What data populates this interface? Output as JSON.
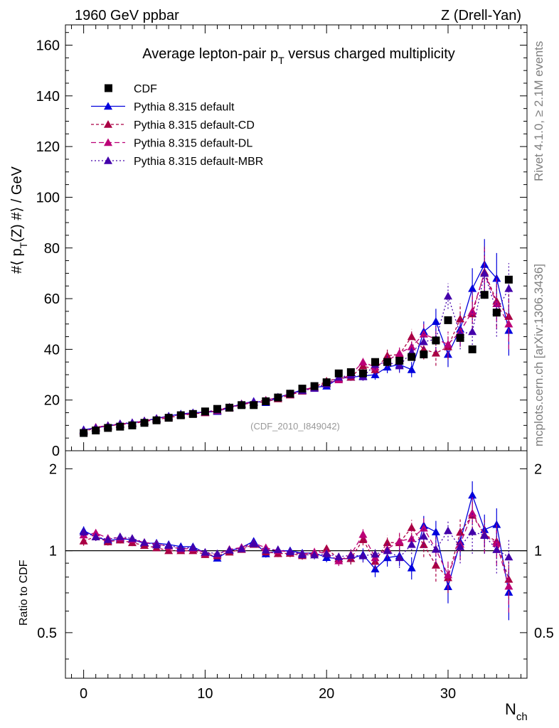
{
  "header": {
    "left": "1960 GeV ppbar",
    "right": "Z (Drell-Yan)"
  },
  "side": {
    "top": "Rivet 4.1.0, ≥ 2.1M events",
    "bottom": "mcplots.cern.ch [arXiv:1306.3436]"
  },
  "chart_data": {
    "type": "scatter",
    "title": "Average lepton-pair p_T versus charged multiplicity",
    "watermark": "(CDF_2010_I849042)",
    "xlabel": "N_ch",
    "ylabel": "#⟨ p_T(Z) #⟩ / GeV",
    "ratio_ylabel": "Ratio to CDF",
    "xlim": [
      -1.5,
      36.5
    ],
    "ylim": [
      0,
      168
    ],
    "ratio_ylim": [
      0.34,
      2.33
    ],
    "x_ticks": [
      0,
      10,
      20,
      30
    ],
    "y_ticks": [
      0,
      20,
      40,
      60,
      80,
      100,
      120,
      140,
      160
    ],
    "ratio_ticks": [
      0.5,
      1,
      2
    ],
    "x": [
      0,
      1,
      2,
      3,
      4,
      5,
      6,
      7,
      8,
      9,
      10,
      11,
      12,
      13,
      14,
      15,
      16,
      17,
      18,
      19,
      20,
      21,
      22,
      23,
      24,
      25,
      26,
      27,
      28,
      29,
      30,
      31,
      32,
      33,
      34,
      35
    ],
    "data": {
      "name": "CDF",
      "color": "#000000",
      "values": [
        7,
        8,
        9,
        9.5,
        10,
        11,
        12,
        13,
        14,
        14.5,
        15.5,
        16.5,
        17,
        18,
        18,
        19.5,
        21,
        22.5,
        24.5,
        25.5,
        27,
        30.5,
        31,
        30.5,
        35,
        35,
        35.5,
        37,
        38,
        43.5,
        51.5,
        44.5,
        40,
        61.5,
        54.5,
        67.5
      ]
    },
    "series": [
      {
        "name": "Pythia 8.315 default",
        "color": "#0000dd",
        "dash": "",
        "values": [
          8.3,
          9.0,
          9.8,
          10.5,
          11.0,
          11.7,
          12.8,
          13.7,
          14.5,
          15.0,
          15.2,
          15.5,
          17.0,
          18.5,
          19.5,
          19.0,
          21.0,
          22.5,
          24.0,
          25.0,
          25.5,
          28.5,
          29.0,
          29.5,
          30.0,
          33.0,
          34.0,
          32.0,
          47.0,
          51.0,
          38.0,
          48.0,
          64.0,
          73.5,
          68.0,
          47.5
        ],
        "errors": [
          0.3,
          0.3,
          0.3,
          0.3,
          0.3,
          0.3,
          0.3,
          0.3,
          0.3,
          0.3,
          0.4,
          0.4,
          0.4,
          0.5,
          0.5,
          0.6,
          0.6,
          0.7,
          0.8,
          0.9,
          1.0,
          1.2,
          1.4,
          1.6,
          2.0,
          2.4,
          2.8,
          3.0,
          4,
          5,
          5,
          6,
          8,
          10,
          10,
          10
        ]
      },
      {
        "name": "Pythia 8.315 default-CD",
        "color": "#aa0044",
        "dash": "4,3",
        "values": [
          7.6,
          9.0,
          9.7,
          10.4,
          10.7,
          11.5,
          12.3,
          13.0,
          14.0,
          14.5,
          15.0,
          15.8,
          16.8,
          18.2,
          19.0,
          19.3,
          20.5,
          22.0,
          23.5,
          25.0,
          27.5,
          28.5,
          29.0,
          33.5,
          32.0,
          37.5,
          38.0,
          45.0,
          40.0,
          38.5,
          41.0,
          52.0,
          54.0,
          70.5,
          59.0,
          53.0
        ],
        "errors": [
          0.3,
          0.3,
          0.3,
          0.3,
          0.3,
          0.3,
          0.3,
          0.3,
          0.3,
          0.3,
          0.4,
          0.4,
          0.4,
          0.5,
          0.5,
          0.6,
          0.6,
          0.7,
          0.8,
          0.9,
          1.0,
          1.2,
          1.4,
          1.6,
          2.0,
          2.4,
          2.8,
          3.0,
          4,
          5,
          5,
          6,
          8,
          10,
          10,
          10
        ]
      },
      {
        "name": "Pythia 8.315 default-DL",
        "color": "#bb0077",
        "dash": "7,4",
        "values": [
          8.0,
          9.3,
          10.0,
          10.6,
          11.0,
          11.8,
          12.7,
          13.5,
          14.2,
          14.8,
          15.2,
          16.0,
          17.2,
          18.5,
          19.2,
          20.0,
          21.0,
          22.3,
          23.8,
          25.2,
          26.5,
          28.0,
          30.0,
          35.0,
          33.0,
          35.5,
          38.5,
          41.0,
          46.0,
          44.0,
          42.0,
          47.0,
          55.0,
          70.0,
          58.0,
          50.0
        ],
        "errors": [
          0.3,
          0.3,
          0.3,
          0.3,
          0.3,
          0.3,
          0.3,
          0.3,
          0.3,
          0.3,
          0.4,
          0.4,
          0.4,
          0.5,
          0.5,
          0.6,
          0.6,
          0.7,
          0.8,
          0.9,
          1.0,
          1.2,
          1.4,
          1.6,
          2.0,
          2.4,
          2.8,
          3.0,
          4,
          5,
          5,
          6,
          8,
          10,
          10,
          10
        ]
      },
      {
        "name": "Pythia 8.315 default-MBR",
        "color": "#4400aa",
        "dash": "2,3",
        "values": [
          8.2,
          9.0,
          9.9,
          10.7,
          11.1,
          11.8,
          12.6,
          13.6,
          14.3,
          14.9,
          15.3,
          16.1,
          17.1,
          18.3,
          19.1,
          19.6,
          21.2,
          22.3,
          23.7,
          24.6,
          26.3,
          29.0,
          29.8,
          29.2,
          34.0,
          35.0,
          33.5,
          39.0,
          43.0,
          44.0,
          61.0,
          46.0,
          47.0,
          70.0,
          55.0,
          64.0
        ],
        "errors": [
          0.3,
          0.3,
          0.3,
          0.3,
          0.3,
          0.3,
          0.3,
          0.3,
          0.3,
          0.3,
          0.4,
          0.4,
          0.4,
          0.5,
          0.5,
          0.6,
          0.6,
          0.7,
          0.8,
          0.9,
          1.0,
          1.2,
          1.4,
          1.6,
          2.0,
          2.4,
          2.8,
          3.0,
          4,
          5,
          5,
          6,
          8,
          10,
          10,
          10
        ]
      }
    ]
  }
}
